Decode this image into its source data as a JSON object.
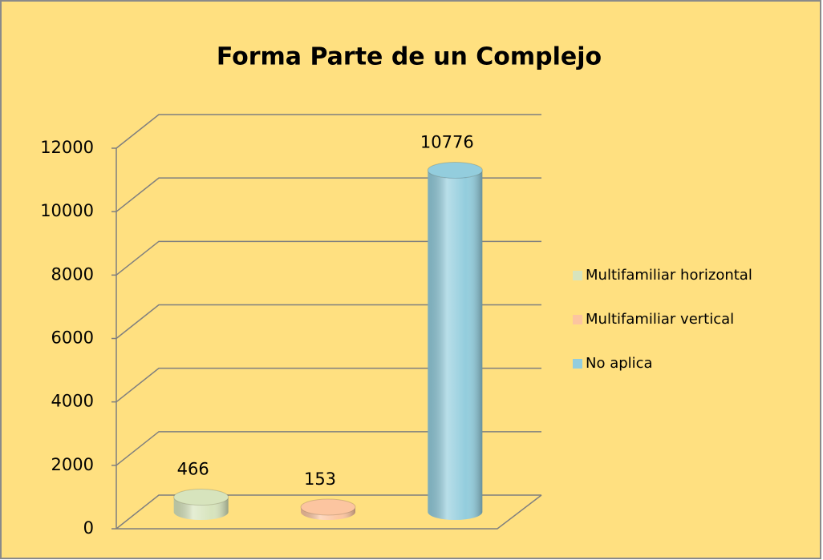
{
  "chart_data": {
    "type": "bar3d",
    "title": "Forma Parte de un Complejo",
    "series": [
      {
        "name": "Multifamiliar horizontal",
        "color": "#d7e4bd",
        "values": [
          466
        ]
      },
      {
        "name": "Multifamiliar vertical",
        "color": "#fcc5a0",
        "values": [
          153
        ]
      },
      {
        "name": "No aplica",
        "color": "#93cddd",
        "values": [
          10776
        ]
      }
    ],
    "ylim": [
      0,
      12000
    ],
    "yticks": [
      0,
      2000,
      4000,
      6000,
      8000,
      10000,
      12000
    ],
    "grid": true,
    "legend": "right"
  }
}
